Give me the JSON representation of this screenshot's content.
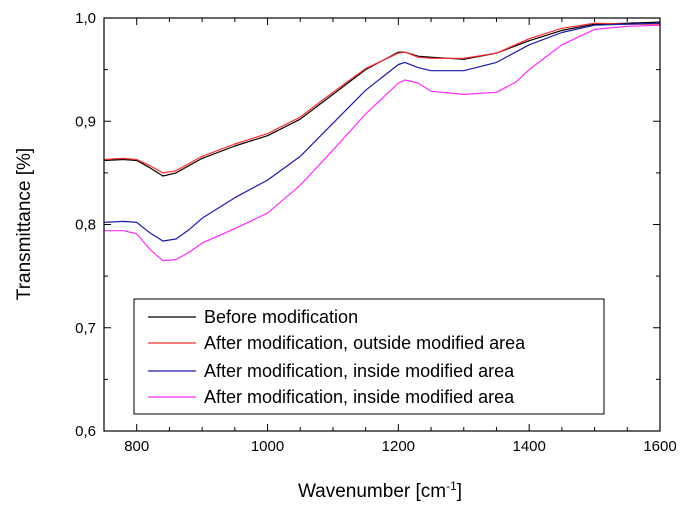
{
  "chart_data": {
    "type": "line",
    "title": "",
    "xlabel": "Wavenumber [cm",
    "xlabel_sup": "-1",
    "xlabel_end": "]",
    "ylabel": "Transmittance [%]",
    "xlim": [
      750,
      1600
    ],
    "ylim": [
      0.6,
      1.0
    ],
    "x_ticks": [
      800,
      1000,
      1200,
      1400,
      1600
    ],
    "x_tick_labels": [
      "800",
      "1000",
      "1200",
      "1400",
      "1600"
    ],
    "y_ticks": [
      0.6,
      0.7,
      0.8,
      0.9,
      1.0
    ],
    "y_tick_labels": [
      "0,6",
      "0,7",
      "0,8",
      "0,9",
      "1,0"
    ],
    "grid": false,
    "legend_position": "lower-center",
    "series": [
      {
        "name": "Before modification",
        "color": "#000000",
        "x": [
          750,
          780,
          800,
          820,
          840,
          860,
          880,
          900,
          950,
          1000,
          1050,
          1100,
          1150,
          1200,
          1210,
          1230,
          1250,
          1300,
          1350,
          1400,
          1450,
          1500,
          1550,
          1600
        ],
        "y": [
          0.862,
          0.863,
          0.862,
          0.855,
          0.847,
          0.85,
          0.857,
          0.864,
          0.876,
          0.886,
          0.902,
          0.926,
          0.95,
          0.967,
          0.967,
          0.963,
          0.962,
          0.96,
          0.966,
          0.978,
          0.988,
          0.994,
          0.995,
          0.996
        ]
      },
      {
        "name": "After modification, outside modified area",
        "color": "#ff2a2a",
        "x": [
          750,
          780,
          800,
          820,
          840,
          860,
          880,
          900,
          950,
          1000,
          1050,
          1100,
          1150,
          1200,
          1210,
          1230,
          1250,
          1300,
          1350,
          1400,
          1450,
          1500,
          1550,
          1600
        ],
        "y": [
          0.863,
          0.864,
          0.863,
          0.857,
          0.85,
          0.852,
          0.859,
          0.866,
          0.878,
          0.888,
          0.904,
          0.928,
          0.951,
          0.966,
          0.967,
          0.962,
          0.961,
          0.961,
          0.966,
          0.98,
          0.99,
          0.995,
          0.994,
          0.994
        ]
      },
      {
        "name": "After modification, inside modified area",
        "color": "#1a1aaa",
        "x": [
          750,
          780,
          800,
          820,
          840,
          860,
          880,
          900,
          950,
          1000,
          1050,
          1100,
          1150,
          1200,
          1210,
          1230,
          1250,
          1300,
          1350,
          1400,
          1450,
          1500,
          1550,
          1600
        ],
        "y": [
          0.802,
          0.803,
          0.802,
          0.792,
          0.784,
          0.786,
          0.795,
          0.806,
          0.826,
          0.843,
          0.866,
          0.898,
          0.93,
          0.955,
          0.957,
          0.952,
          0.949,
          0.949,
          0.957,
          0.974,
          0.986,
          0.993,
          0.994,
          0.995
        ]
      },
      {
        "name": "After modification, inside modified area",
        "color": "#ff2aff",
        "x": [
          750,
          780,
          800,
          820,
          840,
          860,
          880,
          900,
          950,
          1000,
          1050,
          1100,
          1150,
          1200,
          1210,
          1230,
          1250,
          1300,
          1350,
          1380,
          1400,
          1450,
          1500,
          1550,
          1600
        ],
        "y": [
          0.794,
          0.794,
          0.791,
          0.776,
          0.765,
          0.766,
          0.773,
          0.782,
          0.796,
          0.811,
          0.838,
          0.872,
          0.907,
          0.937,
          0.94,
          0.937,
          0.929,
          0.926,
          0.928,
          0.938,
          0.95,
          0.974,
          0.989,
          0.992,
          0.993
        ]
      }
    ]
  }
}
